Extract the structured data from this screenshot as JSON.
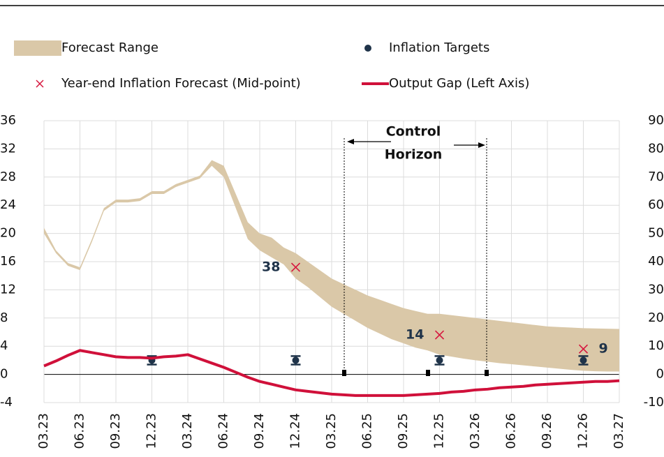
{
  "chart_data": {
    "type": "combo",
    "categories": [
      "03.23",
      null,
      null,
      "06.23",
      null,
      null,
      "09.23",
      null,
      null,
      "12.23",
      null,
      null,
      "03.24",
      null,
      null,
      "06.24",
      null,
      null,
      "09.24",
      null,
      null,
      "12.24",
      null,
      null,
      "03.25",
      null,
      null,
      "06.25",
      null,
      null,
      "09.25",
      null,
      null,
      "12.25",
      null,
      null,
      "03.26",
      null,
      null,
      "06.26",
      null,
      null,
      "09.26",
      null,
      null,
      "12.26",
      null,
      null,
      "03.27"
    ],
    "ylim": [
      -4,
      36
    ],
    "yticks": [
      -4,
      0,
      4,
      8,
      12,
      16,
      20,
      24,
      28,
      32,
      36
    ],
    "y2lim": [
      -10,
      90
    ],
    "y2ticks": [
      -10,
      0,
      10,
      20,
      30,
      40,
      50,
      60,
      70,
      80,
      90
    ],
    "grid": true,
    "annotation": [
      "Control",
      "Horizon"
    ],
    "series": [
      {
        "name": "Forecast Range",
        "type": "band",
        "color": "#dac8a8",
        "axis": "y2",
        "high": [
          52,
          44,
          39.5,
          38,
          48,
          59,
          62,
          62,
          62.5,
          65,
          65,
          67.5,
          69,
          70.5,
          76,
          74,
          64,
          54,
          50,
          48.5,
          45,
          43,
          40,
          37,
          34,
          32,
          30,
          28,
          26.5,
          25,
          23.5,
          22.5,
          21.5,
          21.5,
          21,
          20.5,
          20,
          19.5,
          19,
          18.5,
          18,
          17.5,
          17,
          16.8,
          16.6,
          16.4,
          16.3,
          16.2,
          16.1
        ],
        "low": [
          50,
          43,
          38.5,
          37,
          47,
          58,
          61,
          61,
          61.5,
          64,
          64,
          66.5,
          68,
          69.5,
          74,
          70,
          59,
          48,
          44,
          41.5,
          39,
          34,
          31,
          27.5,
          24,
          21.5,
          19,
          16.5,
          14.5,
          12.5,
          11,
          9.5,
          8.5,
          7,
          6.3,
          5.6,
          5,
          4.5,
          4,
          3.6,
          3.2,
          2.8,
          2.4,
          2,
          1.6,
          1.3,
          1.1,
          1,
          1
        ]
      },
      {
        "name": "Inflation Targets",
        "type": "errorbar",
        "color": "#1f3349",
        "axis": "y2",
        "values": [
          null,
          null,
          null,
          null,
          null,
          null,
          null,
          null,
          null,
          5,
          null,
          null,
          null,
          null,
          null,
          null,
          null,
          null,
          null,
          null,
          null,
          5,
          null,
          null,
          null,
          null,
          null,
          null,
          null,
          null,
          null,
          null,
          null,
          5,
          null,
          null,
          null,
          null,
          null,
          null,
          null,
          null,
          null,
          null,
          null,
          5,
          null,
          null,
          null
        ],
        "errors": [
          null,
          null,
          null,
          null,
          null,
          null,
          null,
          null,
          null,
          1.5,
          null,
          null,
          null,
          null,
          null,
          null,
          null,
          null,
          null,
          null,
          null,
          1.5,
          null,
          null,
          null,
          null,
          null,
          null,
          null,
          null,
          null,
          null,
          null,
          1.5,
          null,
          null,
          null,
          null,
          null,
          null,
          null,
          null,
          null,
          null,
          null,
          1.5,
          null,
          null,
          null
        ]
      },
      {
        "name": "Year-end Inflation Forecast (Mid-point)",
        "type": "cross",
        "color": "#d6163e",
        "axis": "y2",
        "values": [
          null,
          null,
          null,
          null,
          null,
          null,
          null,
          null,
          null,
          null,
          null,
          null,
          null,
          null,
          null,
          null,
          null,
          null,
          null,
          null,
          null,
          38,
          null,
          null,
          null,
          null,
          null,
          null,
          null,
          null,
          null,
          null,
          null,
          14,
          null,
          null,
          null,
          null,
          null,
          null,
          null,
          null,
          null,
          null,
          null,
          9,
          null,
          null,
          null
        ]
      },
      {
        "name": "Output Gap (Left Axis)",
        "type": "line",
        "color": "#d0103a",
        "values": [
          1.2,
          1.9,
          2.7,
          3.4,
          3.1,
          2.8,
          2.5,
          2.4,
          2.4,
          2.3,
          2.5,
          2.6,
          2.8,
          2.2,
          1.6,
          1.0,
          0.3,
          -0.4,
          -1.0,
          -1.4,
          -1.8,
          -2.2,
          -2.4,
          -2.6,
          -2.8,
          -2.9,
          -3.0,
          -3.0,
          -3.0,
          -3.0,
          -3.0,
          -2.9,
          -2.8,
          -2.7,
          -2.5,
          -2.4,
          -2.2,
          -2.1,
          -1.9,
          -1.8,
          -1.7,
          -1.5,
          -1.4,
          -1.3,
          -1.2,
          -1.1,
          -1.0,
          -1.0,
          -0.9
        ]
      }
    ]
  }
}
